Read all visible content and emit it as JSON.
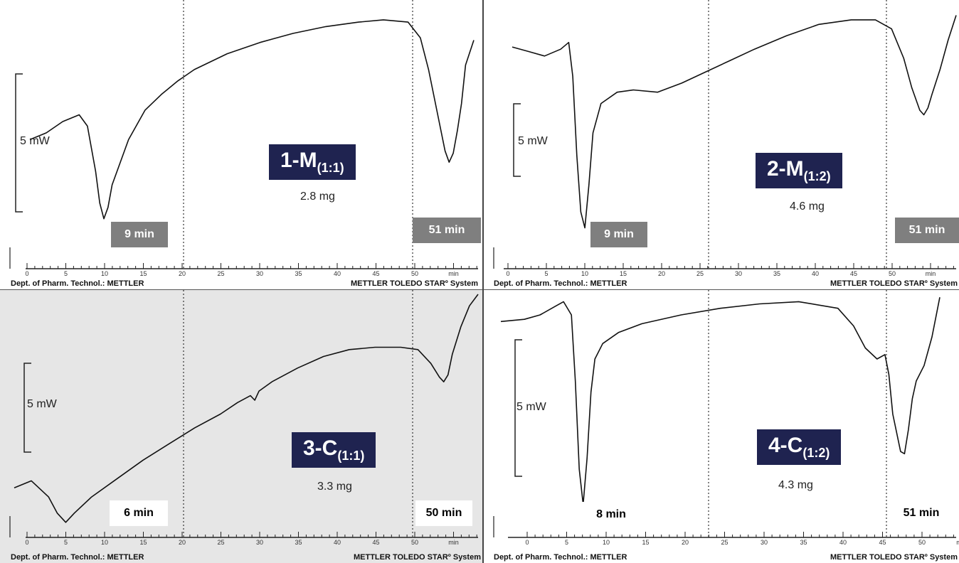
{
  "chart_data": [
    {
      "type": "line",
      "sample": "1-M",
      "ratio": "(1:1)",
      "mass": "2.8 mg",
      "scale_label": "5 mW",
      "x_ticks": [
        "0",
        "5",
        "10",
        "15",
        "20",
        "25",
        "30",
        "35",
        "40",
        "45",
        "50",
        "min"
      ],
      "xlim": [
        0,
        54
      ],
      "time_markers": [
        "9 min",
        "51 min"
      ],
      "marker_style": "grey",
      "footer_left": "Dept. of Pharm. Technol.: METTLER",
      "footer_right": "METTLER TOLEDO STARº System",
      "x": [
        0,
        2,
        4,
        6,
        7,
        8,
        8.5,
        9,
        9.5,
        10,
        12,
        14,
        16,
        18,
        20,
        24,
        28,
        32,
        36,
        40,
        43,
        46,
        47.5,
        48.5,
        49.5,
        50.5,
        51,
        51.5,
        52,
        52.5,
        53,
        54
      ],
      "y": [
        0.58,
        0.55,
        0.5,
        0.47,
        0.52,
        0.72,
        0.86,
        0.93,
        0.88,
        0.78,
        0.58,
        0.45,
        0.38,
        0.32,
        0.27,
        0.2,
        0.15,
        0.11,
        0.08,
        0.06,
        0.05,
        0.06,
        0.13,
        0.27,
        0.45,
        0.63,
        0.68,
        0.64,
        0.54,
        0.42,
        0.25,
        0.14
      ]
    },
    {
      "type": "line",
      "sample": "2-M",
      "ratio": "(1:2)",
      "mass": "4.6 mg",
      "scale_label": "5 mW",
      "x_ticks": [
        "0",
        "5",
        "10",
        "15",
        "20",
        "25",
        "30",
        "35",
        "40",
        "45",
        "50",
        "min"
      ],
      "xlim": [
        0,
        55
      ],
      "time_markers": [
        "9 min",
        "51 min"
      ],
      "marker_style": "grey",
      "footer_left": "Dept. of Pharm. Technol.: METTLER",
      "footer_right": "METTLER TOLEDO STARº System",
      "x": [
        0,
        2,
        4,
        6,
        7,
        7.5,
        8,
        8.5,
        9,
        9.5,
        10,
        11,
        13,
        15,
        18,
        21,
        24,
        27,
        30,
        34,
        38,
        42,
        45,
        47,
        48.5,
        49.5,
        50.5,
        51,
        51.5,
        52,
        53,
        54,
        55
      ],
      "y": [
        0.17,
        0.19,
        0.21,
        0.18,
        0.15,
        0.3,
        0.65,
        0.9,
        0.97,
        0.78,
        0.55,
        0.42,
        0.37,
        0.36,
        0.37,
        0.33,
        0.28,
        0.23,
        0.18,
        0.12,
        0.07,
        0.05,
        0.05,
        0.09,
        0.22,
        0.35,
        0.45,
        0.47,
        0.44,
        0.38,
        0.27,
        0.14,
        0.03
      ]
    },
    {
      "type": "line",
      "sample": "3-C",
      "ratio": "(1:1)",
      "mass": "3.3 mg",
      "scale_label": "5 mW",
      "x_ticks": [
        "0",
        "5",
        "10",
        "15",
        "20",
        "25",
        "30",
        "35",
        "40",
        "45",
        "50",
        "min"
      ],
      "xlim": [
        0,
        54
      ],
      "time_markers": [
        "6 min",
        "50 min"
      ],
      "marker_style": "white",
      "footer_left": "Dept. of Pharm. Technol.: METTLER",
      "footer_right": "METTLER TOLEDO STARº System",
      "x": [
        0,
        2,
        4,
        5,
        6,
        7,
        9,
        12,
        15,
        18,
        21,
        24,
        26,
        27.5,
        28,
        28.5,
        30,
        33,
        36,
        39,
        42,
        45,
        47,
        48.5,
        49.5,
        50,
        50.5,
        51,
        52,
        53,
        54
      ],
      "y": [
        0.84,
        0.81,
        0.88,
        0.95,
        0.99,
        0.95,
        0.88,
        0.8,
        0.72,
        0.65,
        0.58,
        0.52,
        0.47,
        0.44,
        0.46,
        0.42,
        0.38,
        0.32,
        0.27,
        0.24,
        0.23,
        0.23,
        0.24,
        0.3,
        0.36,
        0.38,
        0.35,
        0.26,
        0.14,
        0.05,
        0.0
      ]
    },
    {
      "type": "line",
      "sample": "4-C",
      "ratio": "(1:2)",
      "mass": "4.3 mg",
      "scale_label": "5 mW",
      "x_ticks": [
        "0",
        "5",
        "10",
        "15",
        "20",
        "25",
        "30",
        "35",
        "40",
        "45",
        "50",
        "min"
      ],
      "xlim": [
        -3,
        54
      ],
      "time_markers": [
        "8 min",
        "51 min"
      ],
      "marker_style": "white",
      "footer_left": "Dept. of Pharm. Technol.: METTLER",
      "footer_right": "METTLER TOLEDO STARº System",
      "x": [
        -3,
        0,
        2,
        4,
        5,
        6,
        6.5,
        7,
        7.5,
        8,
        8.5,
        9,
        10,
        12,
        15,
        20,
        25,
        30,
        35,
        40,
        42,
        43.5,
        45,
        46,
        46.5,
        47,
        48,
        48.5,
        49,
        49.5,
        50,
        51,
        52,
        53
      ],
      "y": [
        0.13,
        0.12,
        0.1,
        0.06,
        0.04,
        0.1,
        0.4,
        0.8,
        0.96,
        0.75,
        0.45,
        0.3,
        0.23,
        0.18,
        0.14,
        0.1,
        0.07,
        0.05,
        0.04,
        0.07,
        0.15,
        0.25,
        0.3,
        0.28,
        0.37,
        0.55,
        0.72,
        0.73,
        0.62,
        0.48,
        0.4,
        0.33,
        0.2,
        0.02
      ]
    }
  ]
}
